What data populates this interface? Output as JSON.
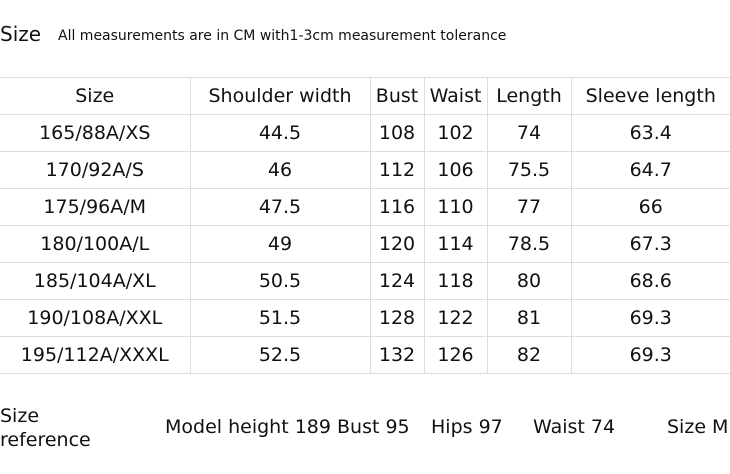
{
  "header": {
    "title": "Size",
    "note": "All measurements are in CM with1-3cm measurement tolerance"
  },
  "table": {
    "columns": [
      "Size",
      "Shoulder width",
      "Bust",
      "Waist",
      "Length",
      "Sleeve length"
    ],
    "rows": [
      [
        "165/88A/XS",
        "44.5",
        "108",
        "102",
        "74",
        "63.4"
      ],
      [
        "170/92A/S",
        "46",
        "112",
        "106",
        "75.5",
        "64.7"
      ],
      [
        "175/96A/M",
        "47.5",
        "116",
        "110",
        "77",
        "66"
      ],
      [
        "180/100A/L",
        "49",
        "120",
        "114",
        "78.5",
        "67.3"
      ],
      [
        "185/104A/XL",
        "50.5",
        "124",
        "118",
        "80",
        "68.6"
      ],
      [
        "190/108A/XXL",
        "51.5",
        "128",
        "122",
        "81",
        "69.3"
      ],
      [
        "195/112A/XXXL",
        "52.5",
        "132",
        "126",
        "82",
        "69.3"
      ]
    ]
  },
  "footer": {
    "label": "Size reference",
    "items": [
      "Model height 189 Bust 95",
      "Hips 97",
      "Waist 74",
      "Size M"
    ]
  }
}
